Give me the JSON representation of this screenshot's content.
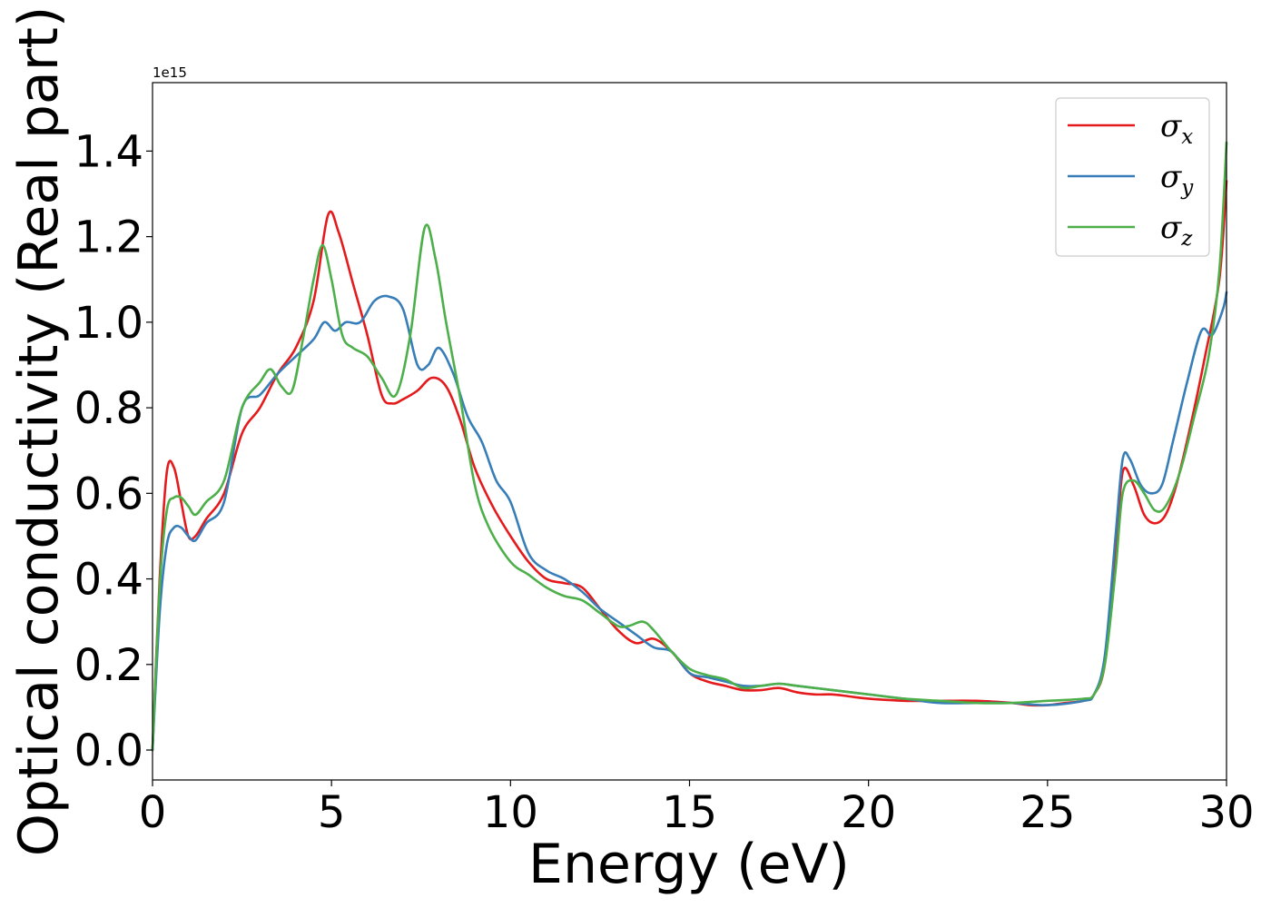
{
  "chart_data": {
    "type": "line",
    "title": "",
    "xlabel": "Energy (eV)",
    "ylabel": "Optical conductivity (Real part)",
    "y_offset_label": "1e15",
    "xlim": [
      0,
      30
    ],
    "ylim": [
      -0.07,
      1.56
    ],
    "xticks": [
      0,
      5,
      10,
      15,
      20,
      25,
      30
    ],
    "xtick_labels": [
      "0",
      "5",
      "10",
      "15",
      "20",
      "25",
      "30"
    ],
    "yticks": [
      0.0,
      0.2,
      0.4,
      0.6,
      0.8,
      1.0,
      1.2,
      1.4
    ],
    "ytick_labels": [
      "0.0",
      "0.2",
      "0.4",
      "0.6",
      "0.8",
      "1.0",
      "1.2",
      "1.4"
    ],
    "grid": false,
    "legend_position": "top-right",
    "series": [
      {
        "name": "σx",
        "symbol": "σ",
        "subscript": "x",
        "color": "#e41a1c",
        "x": [
          0,
          0.2,
          0.4,
          0.6,
          0.8,
          1.0,
          1.2,
          1.5,
          2.0,
          2.5,
          3.0,
          3.5,
          4.0,
          4.5,
          4.9,
          5.2,
          5.6,
          6.0,
          6.4,
          6.7,
          7.0,
          7.4,
          7.8,
          8.2,
          8.6,
          9.0,
          9.5,
          10.0,
          10.5,
          11.0,
          11.5,
          12.0,
          12.5,
          13.0,
          13.5,
          14.0,
          14.5,
          15.0,
          15.5,
          16.0,
          16.5,
          17.0,
          17.5,
          18.0,
          18.5,
          19.0,
          19.5,
          20.0,
          21.0,
          22.0,
          23.0,
          24.0,
          24.5,
          25.0,
          25.5,
          26.0,
          26.3,
          26.6,
          26.9,
          27.1,
          27.4,
          27.7,
          28.0,
          28.3,
          28.6,
          29.0,
          29.4,
          29.8,
          30.0
        ],
        "y": [
          0.0,
          0.4,
          0.65,
          0.66,
          0.58,
          0.5,
          0.5,
          0.54,
          0.6,
          0.74,
          0.8,
          0.88,
          0.94,
          1.05,
          1.25,
          1.21,
          1.09,
          0.97,
          0.83,
          0.81,
          0.82,
          0.84,
          0.87,
          0.85,
          0.77,
          0.66,
          0.57,
          0.5,
          0.44,
          0.4,
          0.39,
          0.38,
          0.33,
          0.28,
          0.25,
          0.26,
          0.23,
          0.18,
          0.16,
          0.15,
          0.14,
          0.14,
          0.145,
          0.135,
          0.13,
          0.13,
          0.125,
          0.12,
          0.115,
          0.115,
          0.115,
          0.11,
          0.105,
          0.105,
          0.11,
          0.115,
          0.13,
          0.2,
          0.45,
          0.65,
          0.62,
          0.55,
          0.53,
          0.55,
          0.62,
          0.76,
          0.92,
          1.1,
          1.33
        ]
      },
      {
        "name": "σy",
        "symbol": "σ",
        "subscript": "y",
        "color": "#377eb8",
        "x": [
          0,
          0.2,
          0.4,
          0.6,
          0.8,
          1.0,
          1.2,
          1.5,
          2.0,
          2.5,
          3.0,
          3.5,
          4.0,
          4.5,
          4.8,
          5.1,
          5.4,
          5.8,
          6.2,
          6.6,
          7.0,
          7.4,
          7.7,
          8.0,
          8.4,
          8.8,
          9.2,
          9.6,
          10.0,
          10.5,
          11.0,
          11.5,
          12.0,
          12.5,
          13.0,
          13.5,
          14.0,
          14.5,
          15.0,
          15.5,
          16.0,
          16.5,
          17.0,
          17.5,
          18.0,
          19.0,
          20.0,
          21.0,
          22.0,
          23.0,
          24.0,
          25.0,
          26.0,
          26.3,
          26.6,
          26.9,
          27.1,
          27.3,
          27.6,
          27.9,
          28.2,
          28.5,
          28.9,
          29.3,
          29.6,
          29.9,
          30.0
        ],
        "y": [
          0.0,
          0.32,
          0.48,
          0.52,
          0.52,
          0.5,
          0.49,
          0.53,
          0.58,
          0.8,
          0.83,
          0.88,
          0.92,
          0.96,
          1.0,
          0.98,
          1.0,
          1.0,
          1.05,
          1.06,
          1.03,
          0.9,
          0.9,
          0.94,
          0.88,
          0.78,
          0.72,
          0.63,
          0.58,
          0.46,
          0.42,
          0.4,
          0.37,
          0.33,
          0.3,
          0.27,
          0.24,
          0.23,
          0.18,
          0.17,
          0.16,
          0.15,
          0.15,
          0.155,
          0.15,
          0.14,
          0.13,
          0.12,
          0.11,
          0.11,
          0.11,
          0.105,
          0.115,
          0.13,
          0.22,
          0.5,
          0.68,
          0.68,
          0.62,
          0.6,
          0.62,
          0.72,
          0.86,
          0.98,
          0.97,
          1.03,
          1.07
        ]
      },
      {
        "name": "σz",
        "symbol": "σ",
        "subscript": "z",
        "color": "#4daf4a",
        "x": [
          0,
          0.2,
          0.4,
          0.6,
          0.8,
          1.0,
          1.2,
          1.5,
          2.0,
          2.5,
          3.0,
          3.3,
          3.6,
          3.9,
          4.2,
          4.5,
          4.75,
          5.0,
          5.3,
          5.6,
          6.0,
          6.4,
          6.8,
          7.2,
          7.6,
          7.9,
          8.2,
          8.6,
          9.0,
          9.4,
          10.0,
          10.5,
          11.0,
          11.5,
          12.0,
          12.5,
          13.0,
          13.3,
          13.7,
          14.0,
          14.5,
          15.0,
          15.5,
          16.0,
          16.5,
          17.0,
          17.5,
          18.0,
          19.0,
          20.0,
          21.0,
          22.0,
          23.0,
          24.0,
          25.0,
          26.0,
          26.3,
          26.6,
          26.9,
          27.1,
          27.4,
          27.7,
          28.0,
          28.3,
          28.7,
          29.1,
          29.5,
          29.8,
          30.0
        ],
        "y": [
          0.0,
          0.38,
          0.56,
          0.59,
          0.59,
          0.57,
          0.55,
          0.58,
          0.63,
          0.8,
          0.86,
          0.89,
          0.85,
          0.84,
          0.96,
          1.1,
          1.18,
          1.1,
          0.97,
          0.94,
          0.92,
          0.87,
          0.83,
          0.97,
          1.22,
          1.15,
          1.0,
          0.82,
          0.62,
          0.52,
          0.44,
          0.41,
          0.38,
          0.36,
          0.35,
          0.32,
          0.29,
          0.29,
          0.3,
          0.28,
          0.23,
          0.19,
          0.175,
          0.165,
          0.145,
          0.15,
          0.155,
          0.15,
          0.14,
          0.13,
          0.12,
          0.115,
          0.11,
          0.11,
          0.115,
          0.12,
          0.13,
          0.2,
          0.42,
          0.6,
          0.63,
          0.6,
          0.56,
          0.57,
          0.65,
          0.78,
          0.92,
          1.12,
          1.42
        ]
      }
    ]
  }
}
